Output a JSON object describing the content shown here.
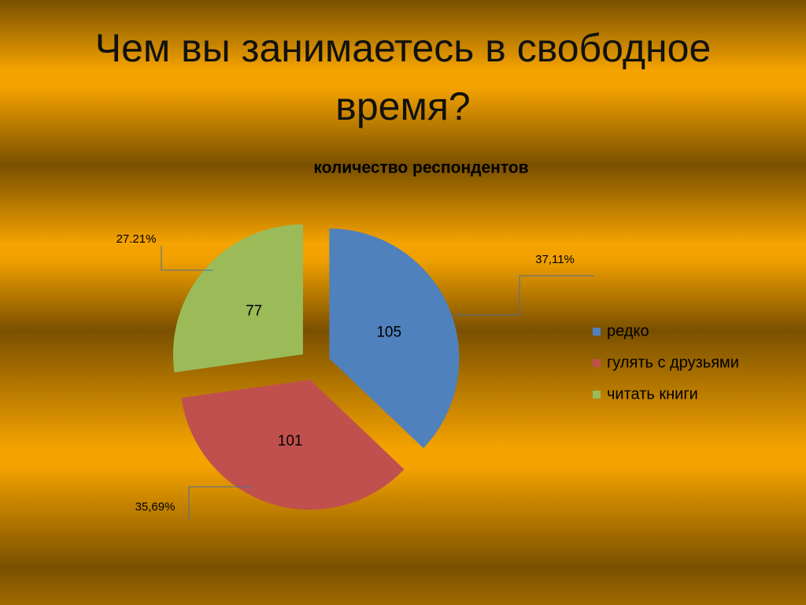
{
  "slide_title": "Чем вы занимаетесь в свободное время?",
  "chart_data": {
    "type": "pie",
    "title": "количество респондентов",
    "categories": [
      "редко",
      "гулять с друзьями",
      "читать книги"
    ],
    "values": [
      105,
      101,
      77
    ],
    "percentages": [
      37.11,
      35.69,
      27.21
    ],
    "percentage_labels": [
      "37,11%",
      "35,69%",
      "27.21%"
    ],
    "colors": [
      "#4f81bd",
      "#c0504d",
      "#9bbb59"
    ],
    "legend": "right"
  }
}
